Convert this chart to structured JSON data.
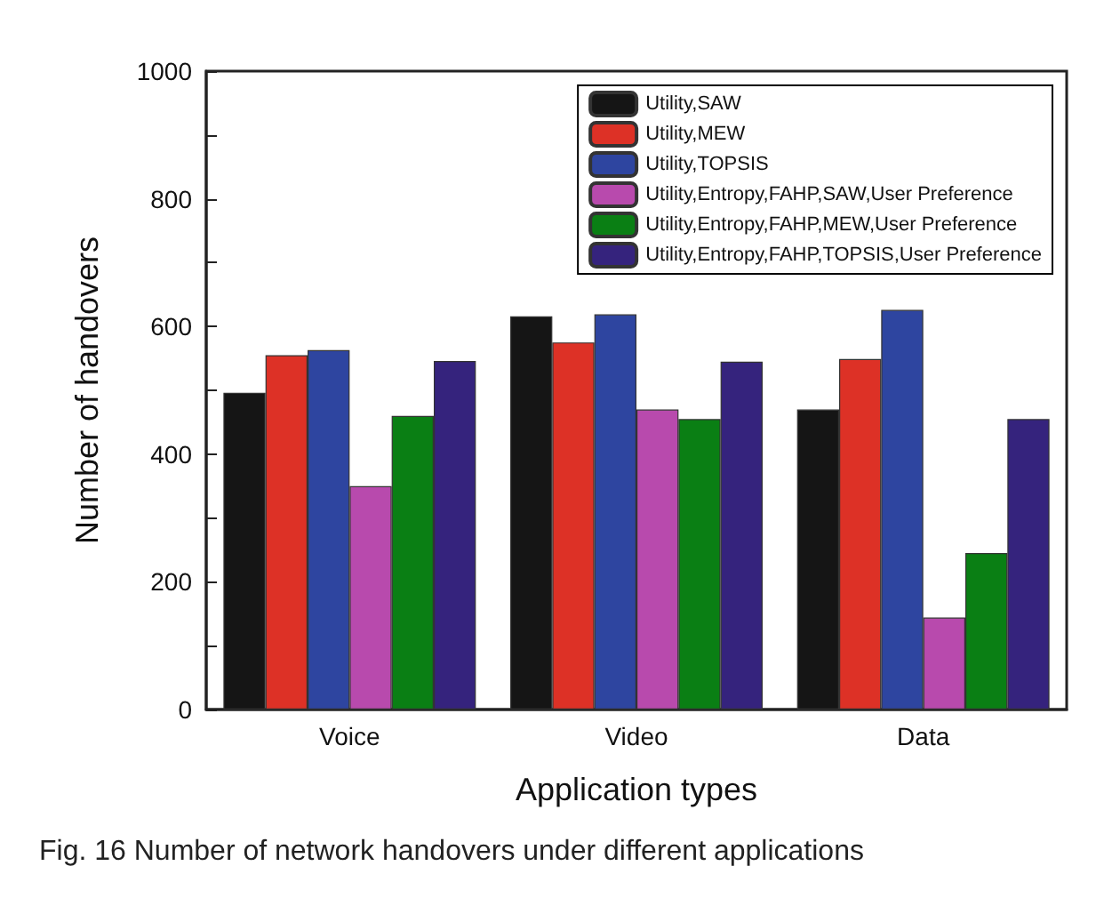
{
  "chart_data": {
    "type": "bar",
    "xlabel": "Application types",
    "ylabel": "Number of handovers",
    "categories": [
      "Voice",
      "Video",
      "Data"
    ],
    "series": [
      {
        "name": "Utility,SAW",
        "color": "#151515",
        "values": [
          496,
          616,
          470
        ]
      },
      {
        "name": "Utility,MEW",
        "color": "#dd3126",
        "values": [
          555,
          575,
          549
        ]
      },
      {
        "name": "Utility,TOPSIS",
        "color": "#2e45a0",
        "values": [
          563,
          619,
          626
        ]
      },
      {
        "name": "Utility,Entropy,FAHP,SAW,User Preference",
        "color": "#b84aad",
        "values": [
          350,
          470,
          144
        ]
      },
      {
        "name": "Utility,Entropy,FAHP,MEW,User Preference",
        "color": "#0a7f14",
        "values": [
          460,
          455,
          245
        ]
      },
      {
        "name": "Utility,Entropy,FAHP,TOPSIS,User Preference",
        "color": "#35237d",
        "values": [
          546,
          545,
          455
        ]
      }
    ],
    "ylim": [
      0,
      1000
    ],
    "yticks": [
      0,
      {
        "value": 100,
        "label": null
      },
      200,
      {
        "value": 300,
        "label": null
      },
      400,
      {
        "value": 500,
        "label": null
      },
      600,
      {
        "value": 700,
        "label": null
      },
      800,
      {
        "value": 900,
        "label": null
      },
      1000
    ],
    "grid": false,
    "legend": "top right",
    "annotations": [
      "Fig. 16 Number of network handovers under different applications"
    ]
  }
}
